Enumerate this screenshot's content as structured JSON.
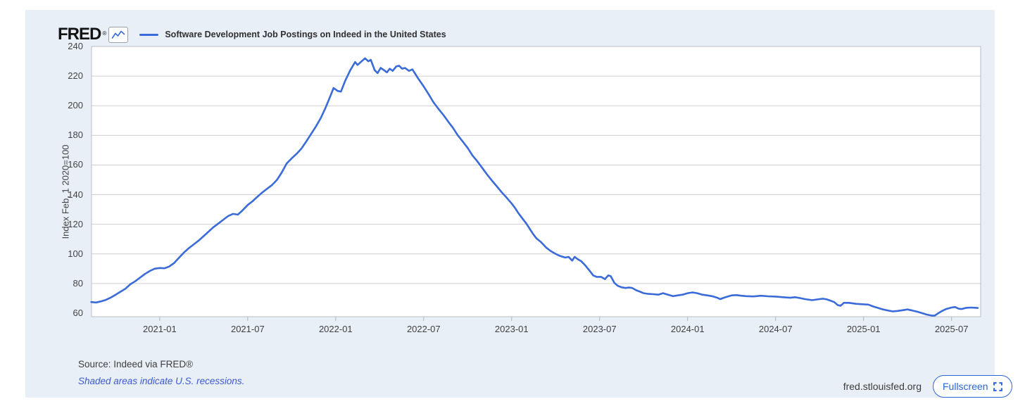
{
  "header": {
    "logo": "FRED",
    "registered": "®",
    "legend_label": "Software Development Job Postings on Indeed in the United States"
  },
  "y_axis": {
    "title": "Index Feb, 1 2020=100",
    "ticks": [
      240,
      220,
      200,
      180,
      160,
      140,
      120,
      100,
      80,
      60
    ]
  },
  "x_axis": {
    "ticks": [
      "2021-01",
      "2021-07",
      "2022-01",
      "2022-07",
      "2023-01",
      "2023-07",
      "2024-01",
      "2024-07",
      "2025-01",
      "2025-07"
    ]
  },
  "footer": {
    "source": "Source: Indeed via FRED®",
    "recessions_note": "Shaded areas indicate U.S. recessions.",
    "site": "fred.stlouisfed.org",
    "fullscreen_label": "Fullscreen"
  },
  "colors": {
    "card_bg": "#e9eff7",
    "plot_bg": "#ffffff",
    "line": "#3a6bd8",
    "gridline": "#cfcfcf",
    "plot_border": "#b9bec4",
    "tick_mark": "#b0b4ba",
    "link_blue": "#3c59d1",
    "fullscreen_blue": "#2a66d9",
    "logo_black": "#141414"
  },
  "chart_data": {
    "type": "line",
    "title": "Software Development Job Postings on Indeed in the United States",
    "xlabel": "",
    "ylabel": "Index Feb, 1 2020=100",
    "ylim": [
      60,
      240
    ],
    "x_range": [
      "2020-08-11",
      "2025-08-25"
    ],
    "grid": "horizontal",
    "legend_position": "top-left",
    "series": [
      {
        "name": "Software Development Job Postings on Indeed in the United States",
        "color": "#3a6bd8",
        "points": [
          [
            "2020-08-11",
            67.5
          ],
          [
            "2020-08-21",
            67.2
          ],
          [
            "2020-09-01",
            68
          ],
          [
            "2020-09-11",
            69
          ],
          [
            "2020-09-21",
            70.5
          ],
          [
            "2020-10-01",
            72.5
          ],
          [
            "2020-10-11",
            74.5
          ],
          [
            "2020-10-21",
            76.5
          ],
          [
            "2020-11-01",
            79.5
          ],
          [
            "2020-11-11",
            81.5
          ],
          [
            "2020-11-21",
            84
          ],
          [
            "2020-12-01",
            86.5
          ],
          [
            "2020-12-11",
            88.5
          ],
          [
            "2020-12-21",
            90
          ],
          [
            "2021-01-01",
            90.5
          ],
          [
            "2021-01-11",
            90.3
          ],
          [
            "2021-01-21",
            91.5
          ],
          [
            "2021-02-01",
            94
          ],
          [
            "2021-02-11",
            97.5
          ],
          [
            "2021-02-21",
            101
          ],
          [
            "2021-03-01",
            104
          ],
          [
            "2021-03-11",
            106.5
          ],
          [
            "2021-03-21",
            109
          ],
          [
            "2021-04-01",
            112
          ],
          [
            "2021-04-11",
            115
          ],
          [
            "2021-04-21",
            118
          ],
          [
            "2021-05-01",
            120.5
          ],
          [
            "2021-05-11",
            123
          ],
          [
            "2021-05-21",
            125.5
          ],
          [
            "2021-06-01",
            127
          ],
          [
            "2021-06-11",
            126.5
          ],
          [
            "2021-06-21",
            129.5
          ],
          [
            "2021-07-01",
            133
          ],
          [
            "2021-07-11",
            135.5
          ],
          [
            "2021-07-21",
            138.5
          ],
          [
            "2021-08-01",
            141.5
          ],
          [
            "2021-08-11",
            144
          ],
          [
            "2021-08-21",
            146.5
          ],
          [
            "2021-09-01",
            150
          ],
          [
            "2021-09-11",
            155
          ],
          [
            "2021-09-21",
            161
          ],
          [
            "2021-10-01",
            164.5
          ],
          [
            "2021-10-11",
            167.5
          ],
          [
            "2021-10-21",
            171
          ],
          [
            "2021-11-01",
            176
          ],
          [
            "2021-11-11",
            181
          ],
          [
            "2021-11-21",
            186
          ],
          [
            "2021-12-01",
            192
          ],
          [
            "2021-12-11",
            199
          ],
          [
            "2021-12-21",
            207
          ],
          [
            "2021-12-27",
            212
          ],
          [
            "2022-01-05",
            210
          ],
          [
            "2022-01-12",
            209.5
          ],
          [
            "2022-01-21",
            217
          ],
          [
            "2022-02-01",
            224
          ],
          [
            "2022-02-11",
            229.5
          ],
          [
            "2022-02-16",
            227.5
          ],
          [
            "2022-02-21",
            229
          ],
          [
            "2022-03-01",
            232
          ],
          [
            "2022-03-08",
            230
          ],
          [
            "2022-03-13",
            231
          ],
          [
            "2022-03-21",
            224
          ],
          [
            "2022-03-27",
            222
          ],
          [
            "2022-04-03",
            225.5
          ],
          [
            "2022-04-10",
            224
          ],
          [
            "2022-04-16",
            222.5
          ],
          [
            "2022-04-22",
            225
          ],
          [
            "2022-04-28",
            223.5
          ],
          [
            "2022-05-05",
            226.5
          ],
          [
            "2022-05-11",
            227
          ],
          [
            "2022-05-17",
            225
          ],
          [
            "2022-05-23",
            225.5
          ],
          [
            "2022-06-01",
            223.5
          ],
          [
            "2022-06-08",
            224.5
          ],
          [
            "2022-06-15",
            221
          ],
          [
            "2022-06-22",
            217.5
          ],
          [
            "2022-07-01",
            213
          ],
          [
            "2022-07-11",
            208
          ],
          [
            "2022-07-21",
            202.5
          ],
          [
            "2022-08-01",
            198
          ],
          [
            "2022-08-11",
            194
          ],
          [
            "2022-08-21",
            189.5
          ],
          [
            "2022-09-01",
            185
          ],
          [
            "2022-09-11",
            180
          ],
          [
            "2022-09-21",
            176
          ],
          [
            "2022-10-01",
            171.5
          ],
          [
            "2022-10-11",
            166.5
          ],
          [
            "2022-10-21",
            162.5
          ],
          [
            "2022-11-01",
            158
          ],
          [
            "2022-11-11",
            153.5
          ],
          [
            "2022-11-21",
            149.5
          ],
          [
            "2022-12-01",
            145.5
          ],
          [
            "2022-12-11",
            141.5
          ],
          [
            "2022-12-21",
            138
          ],
          [
            "2023-01-01",
            134
          ],
          [
            "2023-01-08",
            131
          ],
          [
            "2023-01-15",
            127.5
          ],
          [
            "2023-01-22",
            124.5
          ],
          [
            "2023-02-01",
            120.5
          ],
          [
            "2023-02-08",
            117
          ],
          [
            "2023-02-15",
            113.5
          ],
          [
            "2023-02-22",
            110.5
          ],
          [
            "2023-03-01",
            108
          ],
          [
            "2023-03-11",
            104.5
          ],
          [
            "2023-03-21",
            102
          ],
          [
            "2023-04-01",
            100
          ],
          [
            "2023-04-11",
            98.5
          ],
          [
            "2023-04-21",
            97.5
          ],
          [
            "2023-04-28",
            98
          ],
          [
            "2023-05-05",
            95.5
          ],
          [
            "2023-05-10",
            98
          ],
          [
            "2023-05-16",
            96.5
          ],
          [
            "2023-05-24",
            95
          ],
          [
            "2023-06-01",
            92.5
          ],
          [
            "2023-06-11",
            88.5
          ],
          [
            "2023-06-18",
            85.5
          ],
          [
            "2023-06-25",
            84.5
          ],
          [
            "2023-07-04",
            84.5
          ],
          [
            "2023-07-12",
            83
          ],
          [
            "2023-07-19",
            85.5
          ],
          [
            "2023-07-24",
            85
          ],
          [
            "2023-08-01",
            80.5
          ],
          [
            "2023-08-08",
            78.5
          ],
          [
            "2023-08-16",
            77.5
          ],
          [
            "2023-08-24",
            77
          ],
          [
            "2023-09-01",
            77.3
          ],
          [
            "2023-09-08",
            77
          ],
          [
            "2023-09-16",
            75.5
          ],
          [
            "2023-09-24",
            74.5
          ],
          [
            "2023-10-01",
            73.5
          ],
          [
            "2023-10-11",
            73
          ],
          [
            "2023-10-21",
            72.8
          ],
          [
            "2023-11-01",
            72.5
          ],
          [
            "2023-11-11",
            73.5
          ],
          [
            "2023-11-21",
            72.5
          ],
          [
            "2023-12-01",
            71.5
          ],
          [
            "2023-12-11",
            72
          ],
          [
            "2023-12-21",
            72.5
          ],
          [
            "2024-01-01",
            73.5
          ],
          [
            "2024-01-11",
            74
          ],
          [
            "2024-01-21",
            73.5
          ],
          [
            "2024-02-01",
            72.5
          ],
          [
            "2024-02-11",
            72
          ],
          [
            "2024-02-21",
            71.5
          ],
          [
            "2024-03-01",
            70.5
          ],
          [
            "2024-03-08",
            69.5
          ],
          [
            "2024-03-16",
            70.5
          ],
          [
            "2024-04-01",
            72
          ],
          [
            "2024-04-11",
            72.2
          ],
          [
            "2024-04-21",
            71.8
          ],
          [
            "2024-05-01",
            71.5
          ],
          [
            "2024-05-16",
            71.3
          ],
          [
            "2024-06-01",
            71.8
          ],
          [
            "2024-06-16",
            71.4
          ],
          [
            "2024-07-01",
            71.2
          ],
          [
            "2024-07-16",
            70.8
          ],
          [
            "2024-08-01",
            70.4
          ],
          [
            "2024-08-11",
            70.8
          ],
          [
            "2024-08-21",
            70.2
          ],
          [
            "2024-09-01",
            69.5
          ],
          [
            "2024-09-16",
            68.8
          ],
          [
            "2024-10-01",
            69.5
          ],
          [
            "2024-10-08",
            69.8
          ],
          [
            "2024-10-16",
            69.3
          ],
          [
            "2024-11-01",
            67.5
          ],
          [
            "2024-11-08",
            65.5
          ],
          [
            "2024-11-14",
            65
          ],
          [
            "2024-11-21",
            67
          ],
          [
            "2024-12-01",
            67
          ],
          [
            "2024-12-16",
            66.3
          ],
          [
            "2025-01-01",
            66
          ],
          [
            "2025-01-11",
            65.8
          ],
          [
            "2025-01-21",
            64.5
          ],
          [
            "2025-02-01",
            63.5
          ],
          [
            "2025-02-11",
            62.5
          ],
          [
            "2025-02-21",
            61.8
          ],
          [
            "2025-03-01",
            61.2
          ],
          [
            "2025-03-11",
            61.5
          ],
          [
            "2025-03-21",
            62
          ],
          [
            "2025-04-01",
            62.5
          ],
          [
            "2025-04-11",
            61.8
          ],
          [
            "2025-04-21",
            61
          ],
          [
            "2025-05-01",
            60
          ],
          [
            "2025-05-11",
            59
          ],
          [
            "2025-05-21",
            58.2
          ],
          [
            "2025-05-27",
            58
          ],
          [
            "2025-06-04",
            60
          ],
          [
            "2025-06-12",
            61.5
          ],
          [
            "2025-06-20",
            62.8
          ],
          [
            "2025-07-01",
            63.8
          ],
          [
            "2025-07-08",
            64.2
          ],
          [
            "2025-07-16",
            63
          ],
          [
            "2025-07-22",
            62.8
          ],
          [
            "2025-08-01",
            63.6
          ],
          [
            "2025-08-11",
            63.8
          ],
          [
            "2025-08-25",
            63.5
          ]
        ]
      }
    ]
  }
}
